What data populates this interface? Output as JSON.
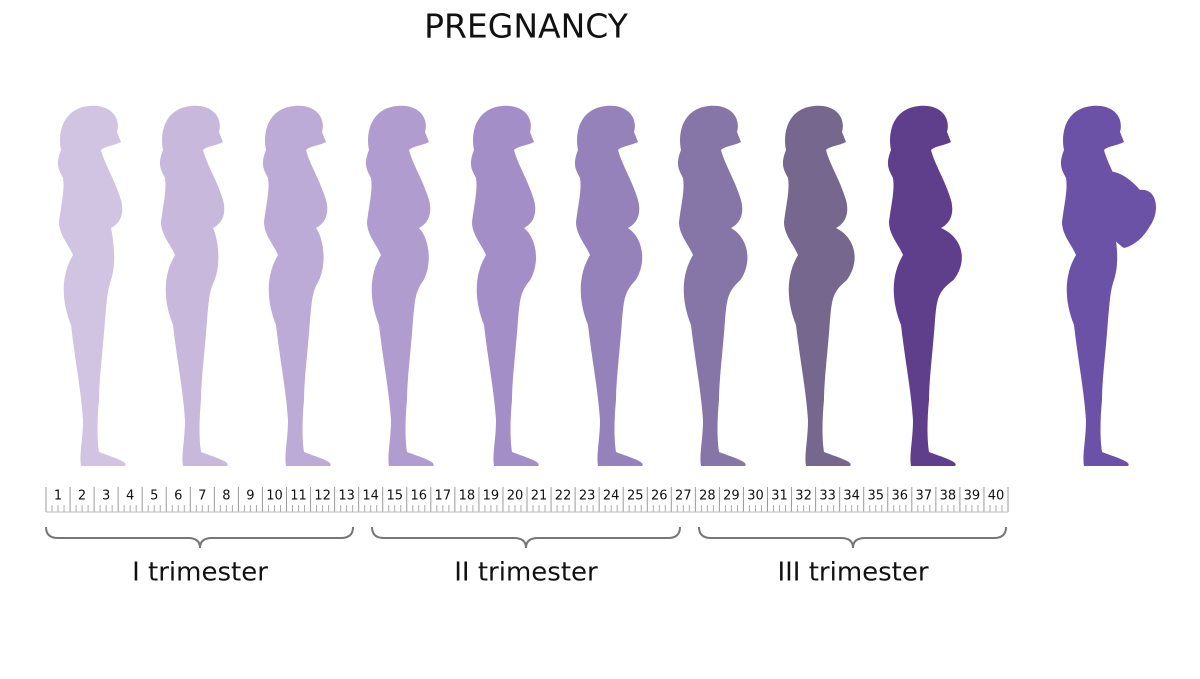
{
  "title": "PREGNANCY",
  "ruler": {
    "weeks": [
      1,
      2,
      3,
      4,
      5,
      6,
      7,
      8,
      9,
      10,
      11,
      12,
      13,
      14,
      15,
      16,
      17,
      18,
      19,
      20,
      21,
      22,
      23,
      24,
      25,
      26,
      27,
      28,
      29,
      30,
      31,
      32,
      33,
      34,
      35,
      36,
      37,
      38,
      39,
      40
    ]
  },
  "trimesters": [
    {
      "label": "I trimester"
    },
    {
      "label": "II trimester"
    },
    {
      "label": "III trimester"
    }
  ]
}
